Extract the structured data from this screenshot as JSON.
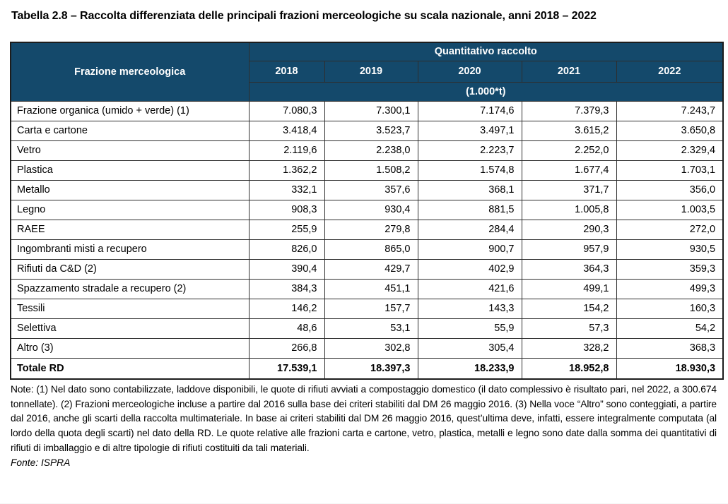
{
  "title": "Tabella 2.8 – Raccolta differenziata delle principali frazioni merceologiche su scala nazionale, anni 2018 – 2022",
  "table": {
    "header": {
      "col1": "Frazione merceologica",
      "group": "Quantitativo raccolto",
      "years": [
        "2018",
        "2019",
        "2020",
        "2021",
        "2022"
      ],
      "unit": "(1.000*t)"
    },
    "rows": [
      {
        "label": "Frazione organica (umido + verde) (1)",
        "values": [
          "7.080,3",
          "7.300,1",
          "7.174,6",
          "7.379,3",
          "7.243,7"
        ]
      },
      {
        "label": "Carta e cartone",
        "values": [
          "3.418,4",
          "3.523,7",
          "3.497,1",
          "3.615,2",
          "3.650,8"
        ]
      },
      {
        "label": "Vetro",
        "values": [
          "2.119,6",
          "2.238,0",
          "2.223,7",
          "2.252,0",
          "2.329,4"
        ]
      },
      {
        "label": "Plastica",
        "values": [
          "1.362,2",
          "1.508,2",
          "1.574,8",
          "1.677,4",
          "1.703,1"
        ]
      },
      {
        "label": "Metallo",
        "values": [
          "332,1",
          "357,6",
          "368,1",
          "371,7",
          "356,0"
        ]
      },
      {
        "label": "Legno",
        "values": [
          "908,3",
          "930,4",
          "881,5",
          "1.005,8",
          "1.003,5"
        ]
      },
      {
        "label": "RAEE",
        "values": [
          "255,9",
          "279,8",
          "284,4",
          "290,3",
          "272,0"
        ]
      },
      {
        "label": "Ingombranti misti a recupero",
        "values": [
          "826,0",
          "865,0",
          "900,7",
          "957,9",
          "930,5"
        ]
      },
      {
        "label": "Rifiuti da C&D (2)",
        "values": [
          "390,4",
          "429,7",
          "402,9",
          "364,3",
          "359,3"
        ]
      },
      {
        "label": "Spazzamento stradale a recupero (2)",
        "values": [
          "384,3",
          "451,1",
          "421,6",
          "499,1",
          "499,3"
        ]
      },
      {
        "label": "Tessili",
        "values": [
          "146,2",
          "157,7",
          "143,3",
          "154,2",
          "160,3"
        ]
      },
      {
        "label": "Selettiva",
        "values": [
          "48,6",
          "53,1",
          "55,9",
          "57,3",
          "54,2"
        ]
      },
      {
        "label": "Altro (3)",
        "values": [
          "266,8",
          "302,8",
          "305,4",
          "328,2",
          "368,3"
        ]
      }
    ],
    "total": {
      "label": "Totale RD",
      "values": [
        "17.539,1",
        "18.397,3",
        "18.233,9",
        "18.952,8",
        "18.930,3"
      ]
    }
  },
  "notes": "Note: (1) Nel dato sono contabilizzate, laddove disponibili, le quote di rifiuti avviati a compostaggio domestico (il dato complessivo è risultato pari, nel 2022, a 300.674 tonnellate). (2) Frazioni merceologiche incluse a partire dal 2016 sulla base dei criteri stabiliti dal DM 26 maggio 2016. (3) Nella voce “Altro” sono conteggiati, a partire dal 2016, anche gli scarti della raccolta multimateriale. In base ai criteri stabiliti dal DM 26 maggio 2016, quest’ultima deve, infatti, essere integralmente computata (al lordo della quota degli scarti) nel dato della RD. Le quote relative alle frazioni carta e cartone, vetro, plastica, metalli e legno sono date dalla somma dei quantitativi di rifiuti di imballaggio e di altre tipologie di rifiuti costituiti da tali materiali.",
  "source": "Fonte: ISPRA",
  "colors": {
    "header_bg": "#14496b",
    "header_text": "#ffffff",
    "border_dark": "#1c1c1c",
    "border_header_light": "#8d98a0"
  }
}
